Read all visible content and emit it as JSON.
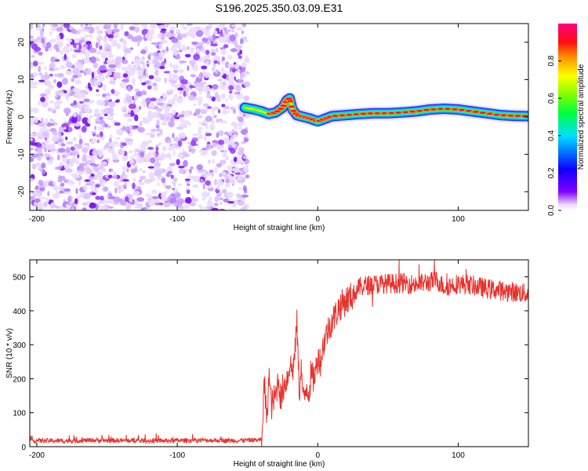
{
  "figure": {
    "title": "S196.2025.350.03.09.E31"
  },
  "chart_data": [
    {
      "type": "heatmap",
      "name": "spectrogram",
      "xlabel": "Height of straight line (km)",
      "ylabel": "Frequency (Hz)",
      "xlim": [
        -205,
        150
      ],
      "ylim": [
        -25,
        25
      ],
      "x_ticks": [
        -200,
        -100,
        0,
        100
      ],
      "y_ticks": [
        -20,
        -10,
        0,
        10,
        20
      ],
      "noise_region_x": [
        -205,
        -50
      ],
      "signal_ridge": {
        "x": [
          -52,
          -45,
          -40,
          -35,
          -30,
          -25,
          -22,
          -20,
          -18,
          -15,
          -10,
          -5,
          0,
          5,
          10,
          20,
          30,
          40,
          50,
          60,
          70,
          80,
          90,
          100,
          110,
          120,
          130,
          140,
          150
        ],
        "frequency": [
          2.5,
          2.0,
          1.5,
          0.8,
          1.2,
          2.5,
          4.5,
          5.0,
          2.0,
          0.5,
          0.0,
          -0.5,
          -1.2,
          -0.5,
          0.2,
          0.5,
          0.8,
          1.0,
          1.0,
          1.2,
          1.5,
          2.0,
          2.2,
          2.0,
          1.5,
          1.0,
          0.5,
          0.3,
          0.2
        ]
      },
      "colorbar": {
        "label": "Normalized spectral amplitude",
        "range": [
          0.0,
          1.0
        ],
        "ticks": [
          "0.0",
          "0.2",
          "0.4",
          "0.6",
          "0.8"
        ],
        "tick_values": [
          0.0,
          0.2,
          0.4,
          0.6,
          0.8
        ]
      }
    },
    {
      "type": "line",
      "name": "snr",
      "xlabel": "Height of straight line (km)",
      "ylabel": "SNR (10 * v/v)",
      "xlim": [
        -205,
        150
      ],
      "ylim": [
        0,
        550
      ],
      "x_ticks": [
        -200,
        -100,
        0,
        100
      ],
      "y_ticks": [
        0,
        100,
        200,
        300,
        400,
        500
      ],
      "series": [
        {
          "name": "SNR",
          "color": "#e8322d",
          "x": [
            -205,
            -180,
            -160,
            -140,
            -120,
            -100,
            -80,
            -60,
            -40,
            -38,
            -36,
            -35,
            -33,
            -30,
            -28,
            -26,
            -25,
            -23,
            -21,
            -20,
            -18,
            -16,
            -15,
            -13,
            -12,
            -10,
            -8,
            -6,
            -5,
            -3,
            -1,
            0,
            2,
            4,
            6,
            8,
            10,
            13,
            15,
            20,
            25,
            28,
            30,
            35,
            40,
            50,
            60,
            70,
            80,
            85,
            90,
            100,
            110,
            120,
            130,
            140,
            150
          ],
          "values": [
            18,
            17,
            19,
            18,
            17,
            18,
            19,
            18,
            20,
            190,
            60,
            230,
            120,
            150,
            200,
            130,
            170,
            190,
            210,
            250,
            220,
            280,
            380,
            150,
            240,
            130,
            180,
            160,
            210,
            200,
            230,
            270,
            250,
            300,
            330,
            350,
            370,
            390,
            410,
            430,
            445,
            460,
            470,
            475,
            478,
            480,
            482,
            478,
            485,
            490,
            470,
            480,
            475,
            465,
            460,
            455,
            450
          ]
        }
      ]
    }
  ]
}
